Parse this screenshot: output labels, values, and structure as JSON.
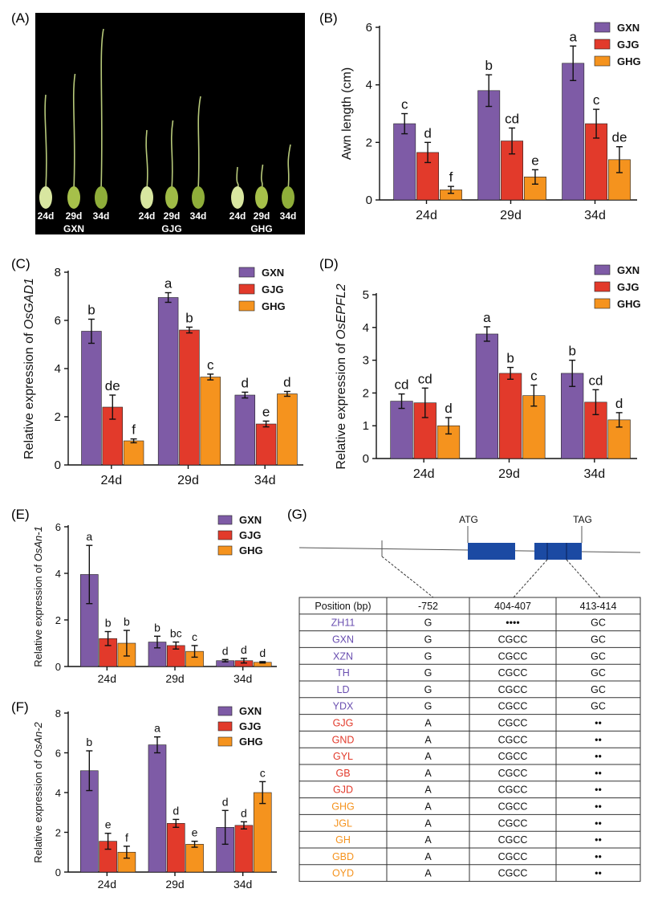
{
  "colors": {
    "GXN": "#7e5ba6",
    "GJG": "#e23a2b",
    "GHG": "#f5931e"
  },
  "panel_a": {
    "label": "(A)",
    "time_labels": [
      "24d",
      "29d",
      "34d",
      "24d",
      "29d",
      "34d",
      "24d",
      "29d",
      "34d"
    ],
    "group_labels": [
      "GXN",
      "GJG",
      "GHG"
    ]
  },
  "chart_data": [
    {
      "id": "B",
      "label": "(B)",
      "type": "bar",
      "title": "",
      "xlabel": "",
      "ylabel": "Awn length (cm)",
      "ylabel_italic": "",
      "ylim": [
        0,
        6
      ],
      "yticks": [
        0,
        2,
        4,
        6
      ],
      "categories": [
        "24d",
        "29d",
        "34d"
      ],
      "series": [
        {
          "name": "GXN",
          "values": [
            2.65,
            3.8,
            4.75
          ],
          "errors": [
            0.35,
            0.55,
            0.6
          ],
          "letters": [
            "c",
            "b",
            "a"
          ]
        },
        {
          "name": "GJG",
          "values": [
            1.65,
            2.05,
            2.65
          ],
          "errors": [
            0.35,
            0.45,
            0.5
          ],
          "letters": [
            "d",
            "cd",
            "c"
          ]
        },
        {
          "name": "GHG",
          "values": [
            0.35,
            0.8,
            1.4
          ],
          "errors": [
            0.12,
            0.25,
            0.45
          ],
          "letters": [
            "f",
            "e",
            "de"
          ]
        }
      ]
    },
    {
      "id": "C",
      "label": "(C)",
      "type": "bar",
      "title": "",
      "xlabel": "",
      "ylabel": "Relative expression of ",
      "ylabel_italic": "OsGAD1",
      "ylim": [
        0,
        8
      ],
      "yticks": [
        0,
        2,
        4,
        6,
        8
      ],
      "categories": [
        "24d",
        "29d",
        "34d"
      ],
      "series": [
        {
          "name": "GXN",
          "values": [
            5.55,
            6.95,
            2.9
          ],
          "errors": [
            0.5,
            0.2,
            0.12
          ],
          "letters": [
            "b",
            "a",
            "d"
          ]
        },
        {
          "name": "GJG",
          "values": [
            2.4,
            5.6,
            1.7
          ],
          "errors": [
            0.5,
            0.12,
            0.12
          ],
          "letters": [
            "de",
            "b",
            "e"
          ]
        },
        {
          "name": "GHG",
          "values": [
            1.0,
            3.65,
            2.95
          ],
          "errors": [
            0.08,
            0.12,
            0.1
          ],
          "letters": [
            "f",
            "c",
            "d"
          ]
        }
      ]
    },
    {
      "id": "D",
      "label": "(D)",
      "type": "bar",
      "title": "",
      "xlabel": "",
      "ylabel": "Relative expression of ",
      "ylabel_italic": "OsEPFL2",
      "ylim": [
        0,
        5
      ],
      "yticks": [
        0,
        1,
        2,
        3,
        4,
        5
      ],
      "categories": [
        "24d",
        "29d",
        "34d"
      ],
      "series": [
        {
          "name": "GXN",
          "values": [
            1.75,
            3.8,
            2.6
          ],
          "errors": [
            0.22,
            0.22,
            0.4
          ],
          "letters": [
            "cd",
            "a",
            "b"
          ]
        },
        {
          "name": "GJG",
          "values": [
            1.7,
            2.6,
            1.72
          ],
          "errors": [
            0.45,
            0.18,
            0.38
          ],
          "letters": [
            "cd",
            "b",
            "cd"
          ]
        },
        {
          "name": "GHG",
          "values": [
            1.0,
            1.92,
            1.18
          ],
          "errors": [
            0.25,
            0.32,
            0.22
          ],
          "letters": [
            "d",
            "c",
            "d"
          ]
        }
      ]
    },
    {
      "id": "E",
      "label": "(E)",
      "type": "bar",
      "title": "",
      "xlabel": "",
      "ylabel": "Relative expression of ",
      "ylabel_italic": "OsAn-1",
      "ylim": [
        0,
        6
      ],
      "yticks": [
        0,
        2,
        4,
        6
      ],
      "categories": [
        "24d",
        "29d",
        "34d"
      ],
      "series": [
        {
          "name": "GXN",
          "values": [
            3.95,
            1.05,
            0.25
          ],
          "errors": [
            1.25,
            0.25,
            0.05
          ],
          "letters": [
            "a",
            "b",
            "d"
          ]
        },
        {
          "name": "GJG",
          "values": [
            1.2,
            0.9,
            0.25
          ],
          "errors": [
            0.3,
            0.15,
            0.1
          ],
          "letters": [
            "b",
            "bc",
            "d"
          ]
        },
        {
          "name": "GHG",
          "values": [
            1.0,
            0.65,
            0.18
          ],
          "errors": [
            0.55,
            0.25,
            0.03
          ],
          "letters": [
            "b",
            "c",
            "d"
          ]
        }
      ]
    },
    {
      "id": "F",
      "label": "(F)",
      "type": "bar",
      "title": "",
      "xlabel": "",
      "ylabel": "Relative expression of ",
      "ylabel_italic": "OsAn-2",
      "ylim": [
        0,
        8
      ],
      "yticks": [
        0,
        2,
        4,
        6,
        8
      ],
      "categories": [
        "24d",
        "29d",
        "34d"
      ],
      "series": [
        {
          "name": "GXN",
          "values": [
            5.1,
            6.4,
            2.25
          ],
          "errors": [
            1.0,
            0.4,
            0.85
          ],
          "letters": [
            "b",
            "a",
            "d"
          ]
        },
        {
          "name": "GJG",
          "values": [
            1.55,
            2.45,
            2.35
          ],
          "errors": [
            0.4,
            0.2,
            0.18
          ],
          "letters": [
            "e",
            "d",
            "d"
          ]
        },
        {
          "name": "GHG",
          "values": [
            1.0,
            1.4,
            4.0
          ],
          "errors": [
            0.3,
            0.15,
            0.55
          ],
          "letters": [
            "f",
            "e",
            "c"
          ]
        }
      ]
    }
  ],
  "panel_g": {
    "label": "(G)",
    "start_codon": "ATG",
    "stop_codon": "TAG",
    "headers": [
      "Position (bp)",
      "-752",
      "404-407",
      "413-414"
    ],
    "rows": [
      {
        "name": "ZH11",
        "color": "#6a4fb0",
        "cells": [
          "G",
          "••••",
          "GC"
        ]
      },
      {
        "name": "GXN",
        "color": "#6a4fb0",
        "cells": [
          "G",
          "CGCC",
          "GC"
        ]
      },
      {
        "name": "XZN",
        "color": "#6a4fb0",
        "cells": [
          "G",
          "CGCC",
          "GC"
        ]
      },
      {
        "name": "TH",
        "color": "#6a4fb0",
        "cells": [
          "G",
          "CGCC",
          "GC"
        ]
      },
      {
        "name": "LD",
        "color": "#6a4fb0",
        "cells": [
          "G",
          "CGCC",
          "GC"
        ]
      },
      {
        "name": "YDX",
        "color": "#6a4fb0",
        "cells": [
          "G",
          "CGCC",
          "GC"
        ]
      },
      {
        "name": "GJG",
        "color": "#e23a2b",
        "cells": [
          "A",
          "CGCC",
          "••"
        ]
      },
      {
        "name": "GND",
        "color": "#e23a2b",
        "cells": [
          "A",
          "CGCC",
          "••"
        ]
      },
      {
        "name": "GYL",
        "color": "#e23a2b",
        "cells": [
          "A",
          "CGCC",
          "••"
        ]
      },
      {
        "name": "GB",
        "color": "#e23a2b",
        "cells": [
          "A",
          "CGCC",
          "••"
        ]
      },
      {
        "name": "GJD",
        "color": "#e23a2b",
        "cells": [
          "A",
          "CGCC",
          "••"
        ]
      },
      {
        "name": "GHG",
        "color": "#f5931e",
        "cells": [
          "A",
          "CGCC",
          "••"
        ]
      },
      {
        "name": "JGL",
        "color": "#f5931e",
        "cells": [
          "A",
          "CGCC",
          "••"
        ]
      },
      {
        "name": "GH",
        "color": "#f5931e",
        "cells": [
          "A",
          "CGCC",
          "••"
        ]
      },
      {
        "name": "GBD",
        "color": "#f5931e",
        "cells": [
          "A",
          "CGCC",
          "••"
        ]
      },
      {
        "name": "OYD",
        "color": "#f5931e",
        "cells": [
          "A",
          "CGCC",
          "••"
        ]
      }
    ]
  }
}
